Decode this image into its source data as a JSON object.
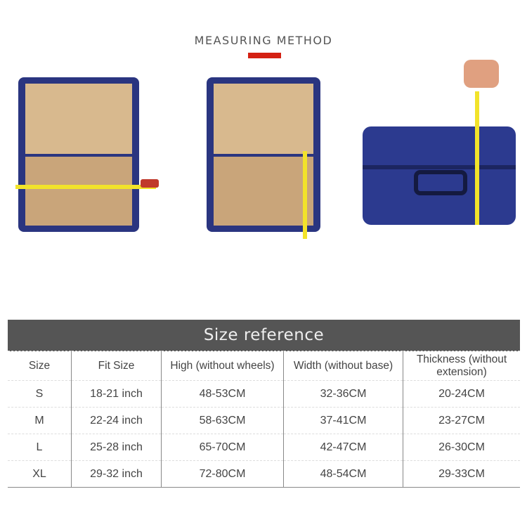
{
  "header": {
    "title": "MEASURING METHOD",
    "accent": "#d42113"
  },
  "photos": [
    {
      "name": "open-suitcase-width"
    },
    {
      "name": "open-suitcase-height"
    },
    {
      "name": "closed-suitcase-thickness"
    }
  ],
  "table": {
    "title": "Size reference",
    "columns": [
      "Size",
      "Fit Size",
      "High (without wheels)",
      "Width (without base)",
      "Thickness (without extension)"
    ],
    "rows": [
      [
        "S",
        "18-21 inch",
        "48-53CM",
        "32-36CM",
        "20-24CM"
      ],
      [
        "M",
        "22-24 inch",
        "58-63CM",
        "37-41CM",
        "23-27CM"
      ],
      [
        "L",
        "25-28 inch",
        "65-70CM",
        "42-47CM",
        "26-30CM"
      ],
      [
        "XL",
        "29-32 inch",
        "72-80CM",
        "48-54CM",
        "29-33CM"
      ]
    ]
  }
}
